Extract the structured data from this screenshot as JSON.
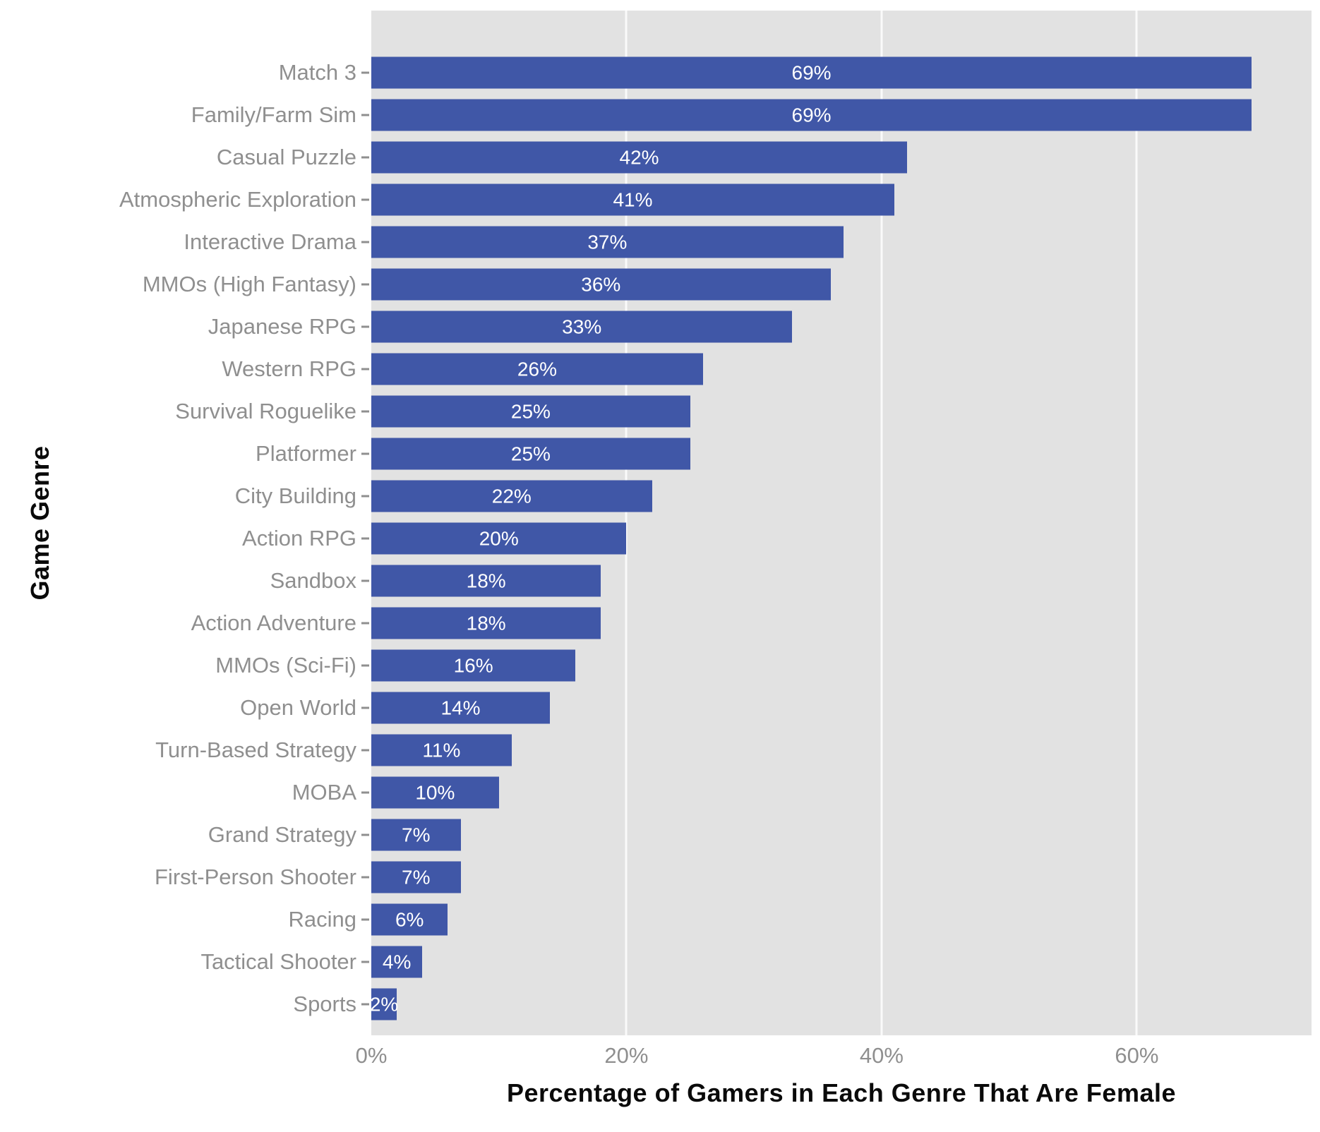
{
  "chart_data": {
    "type": "bar",
    "orientation": "horizontal",
    "title": "",
    "xlabel": "Percentage of Gamers in Each Genre That Are Female",
    "ylabel": "Game Genre",
    "categories": [
      "Match 3",
      "Family/Farm Sim",
      "Casual Puzzle",
      "Atmospheric Exploration",
      "Interactive Drama",
      "MMOs (High Fantasy)",
      "Japanese RPG",
      "Western RPG",
      "Survival Roguelike",
      "Platformer",
      "City Building",
      "Action RPG",
      "Sandbox",
      "Action Adventure",
      "MMOs (Sci-Fi)",
      "Open World",
      "Turn-Based Strategy",
      "MOBA",
      "Grand Strategy",
      "First-Person Shooter",
      "Racing",
      "Tactical Shooter",
      "Sports"
    ],
    "values": [
      69,
      69,
      42,
      41,
      37,
      36,
      33,
      26,
      25,
      25,
      22,
      20,
      18,
      18,
      16,
      14,
      11,
      10,
      7,
      7,
      6,
      4,
      2
    ],
    "value_labels": [
      "69%",
      "69%",
      "42%",
      "41%",
      "37%",
      "36%",
      "33%",
      "26%",
      "25%",
      "25%",
      "22%",
      "20%",
      "18%",
      "18%",
      "16%",
      "14%",
      "11%",
      "10%",
      "7%",
      "7%",
      "6%",
      "4%",
      "2%"
    ],
    "xlim": [
      0,
      73.7
    ],
    "xticks": [
      {
        "value": 0,
        "label": "0%"
      },
      {
        "value": 20,
        "label": "20%"
      },
      {
        "value": 40,
        "label": "40%"
      },
      {
        "value": 60,
        "label": "60%"
      }
    ],
    "grid": "major vertical gridlines, light on gray panel",
    "legend": "none",
    "colors": {
      "bar": "#4057a7",
      "panel_background": "#e2e2e2",
      "gridline": "#fafafa",
      "category_label": "#8f8f8f",
      "tick_label": "#8f8f8f",
      "axis_title": "#0a0a0a",
      "value_label": "#ffffff",
      "page_background": "#ffffff"
    }
  }
}
